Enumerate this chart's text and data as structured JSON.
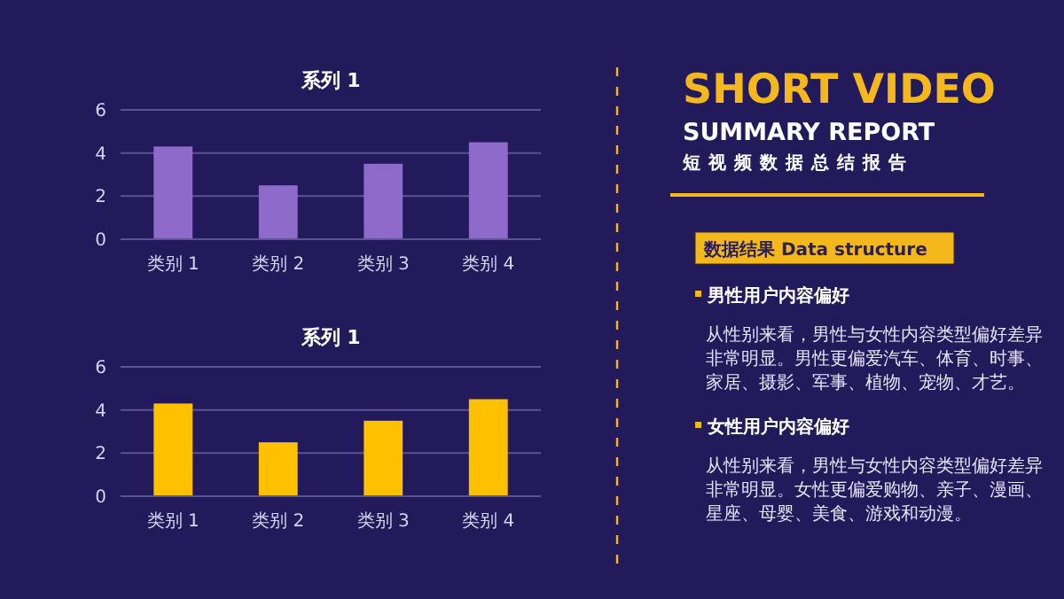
{
  "chart_data": [
    {
      "type": "bar",
      "title": "系列 1",
      "categories": [
        "类别 1",
        "类别 2",
        "类别 3",
        "类别 4"
      ],
      "values": [
        4.3,
        2.5,
        3.5,
        4.5
      ],
      "color": "#8e6bcb",
      "ylim": [
        0,
        6
      ],
      "yticks": [
        0,
        2,
        4,
        6
      ],
      "grid": "y"
    },
    {
      "type": "bar",
      "title": "系列 1",
      "categories": [
        "类别 1",
        "类别 2",
        "类别 3",
        "类别 4"
      ],
      "values": [
        4.3,
        2.5,
        3.5,
        4.5
      ],
      "color": "#ffc000",
      "ylim": [
        0,
        6
      ],
      "yticks": [
        0,
        2,
        4,
        6
      ],
      "grid": "y"
    },
    {
      "type": "other",
      "title": "SHORT VIDEO",
      "subtitle": "SUMMARY REPORT",
      "annotations": [
        "短视频数据总结报告",
        "数据结果 Data structure",
        "男性用户内容偏好",
        "从性别来看，男性与女性内容类型偏好差异非常明显。男性更偏爱汽车、体育、时事、家居、摄影、军事、植物、宠物、才艺。",
        "女性用户内容偏好",
        "从性别来看，男性与女性内容类型偏好差异非常明显。女性更偏爱购物、亲子、漫画、星座、母婴、美食、游戏和动漫。"
      ]
    }
  ]
}
